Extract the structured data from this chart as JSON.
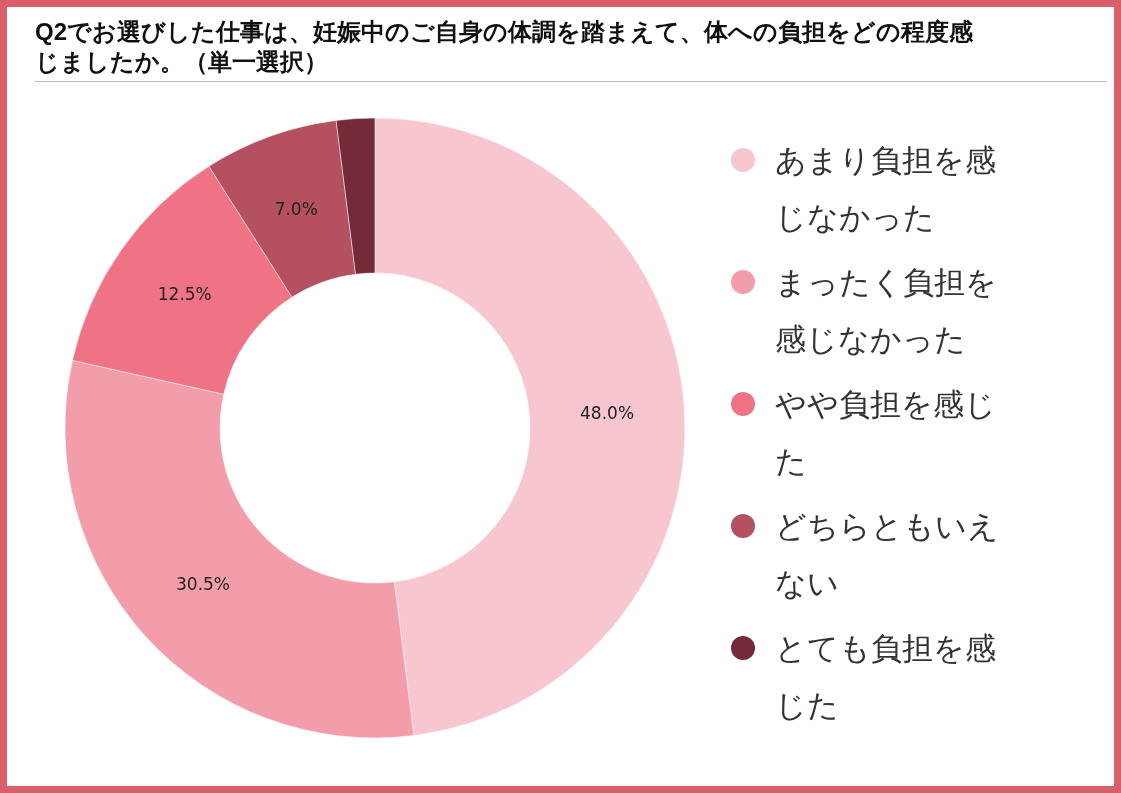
{
  "chart_data": {
    "type": "donut",
    "title": "Q2でお選びした仕事は、妊娠中のご自身の体調を踏まえて、体への負担をどの程度感じましたか。（単一選択）",
    "categories": [
      "あまり負担を感じなかった",
      "まったく負担を感じなかった",
      "やや負担を感じた",
      "どちらともいえない",
      "とても負担を感じた"
    ],
    "values": [
      48.0,
      30.5,
      12.5,
      7.0,
      2.0
    ],
    "value_labels": [
      "48.0%",
      "30.5%",
      "12.5%",
      "7.0%",
      null
    ],
    "colors": [
      "#f8c6cf",
      "#f49daa",
      "#ef7385",
      "#b4505f",
      "#742a38"
    ],
    "legend": "right"
  }
}
